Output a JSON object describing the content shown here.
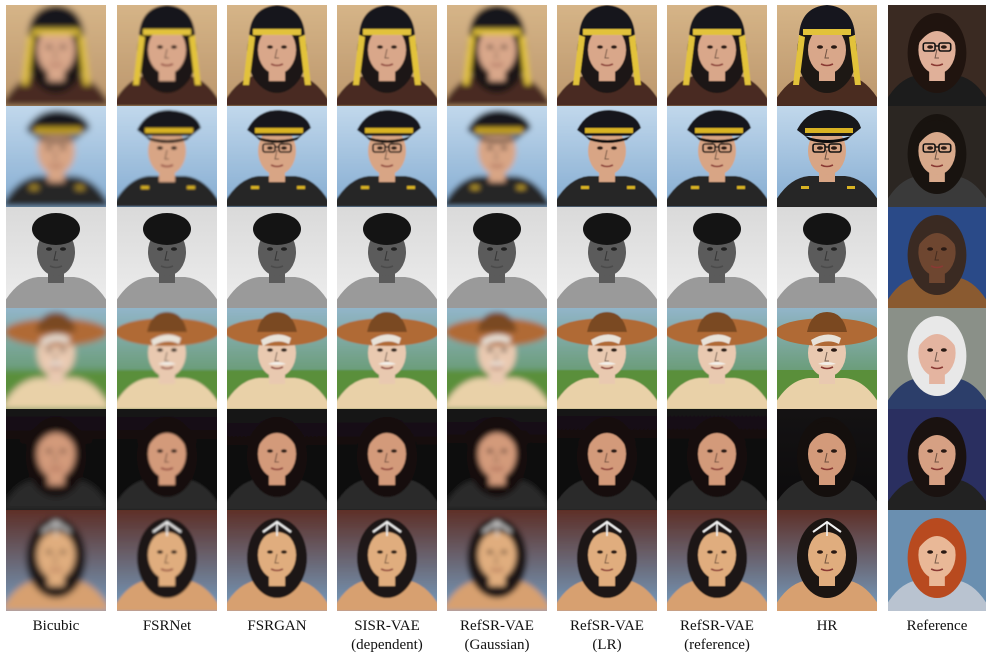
{
  "figure": {
    "columns": [
      {
        "label": "Bicubic",
        "sublabel": "",
        "style": "bicubic"
      },
      {
        "label": "FSRNet",
        "sublabel": "",
        "style": "fsrnet"
      },
      {
        "label": "FSRGAN",
        "sublabel": "",
        "style": "fsrgan"
      },
      {
        "label": "SISR-VAE",
        "sublabel": "(dependent)",
        "style": "sisr"
      },
      {
        "label": "RefSR-VAE",
        "sublabel": "(Gaussian)",
        "style": "gaussian"
      },
      {
        "label": "RefSR-VAE",
        "sublabel": "(LR)",
        "style": "lr"
      },
      {
        "label": "RefSR-VAE",
        "sublabel": "(reference)",
        "style": "reference"
      },
      {
        "label": "HR",
        "sublabel": "",
        "style": "hr"
      },
      {
        "label": "Reference",
        "sublabel": "",
        "style": "refimg"
      }
    ],
    "rows": [
      {
        "subject": "woman-ornate-headdress",
        "bg": "#b9946a",
        "bg2": "#d8b78a",
        "skin": "#d9a78a",
        "hair": "#1d1814",
        "top": "headdress",
        "topColor": "#16161e",
        "accent": "#e2c23a",
        "cloth": "#4a2c20",
        "ref": {
          "bg": "#3a2a22",
          "skin": "#e0b099",
          "hair": "#20140f",
          "glasses": true,
          "cloth": "#1c1c1c"
        }
      },
      {
        "subject": "man-captain-hat",
        "bg": "#7fa8cf",
        "bg2": "#c7dcee",
        "skin": "#d8a585",
        "hair": "#2a2320",
        "top": "cap",
        "topColor": "#17171a",
        "accent": "#d9b323",
        "cloth": "#262626",
        "glasses": true,
        "ref": {
          "bg": "#2b2622",
          "skin": "#d8a98b",
          "hair": "#18130f",
          "glasses": true,
          "cloth": "#3a3a3a"
        }
      },
      {
        "subject": "man-grayscale-boxer",
        "bg": "#efefef",
        "bg2": "#d8d8d8",
        "skin": "#5b5b5b",
        "hair": "#1a1a1a",
        "top": "afro",
        "topColor": "#141414",
        "accent": "#bdbdbd",
        "cloth": "#9a9a9a",
        "gray": true,
        "ref": {
          "bg": "#2a4a88",
          "skin": "#6e4630",
          "hair": "#3a2a22",
          "glasses": false,
          "cloth": "#8a5a30"
        }
      },
      {
        "subject": "man-sombrero",
        "bg": "#4d8a3c",
        "bg2": "#98b9d6",
        "skin": "#e9c9b0",
        "hair": "#e8e2d8",
        "top": "sombrero",
        "topColor": "#b06a35",
        "accent": "#7a4820",
        "cloth": "#e9d1a8",
        "mustache": true,
        "ref": {
          "bg": "#8a9088",
          "skin": "#e4b4a0",
          "hair": "#e8e8e8",
          "glasses": false,
          "cloth": "#2c3e6a"
        }
      },
      {
        "subject": "woman-dark-background",
        "bg": "#0b0a0b",
        "bg2": "#151314",
        "skin": "#d39a7a",
        "hair": "#140f0d",
        "top": "longhair",
        "topColor": "#140f0d",
        "accent": "#c5c5c5",
        "cloth": "#2a2a2a",
        "ref": {
          "bg": "#2a2f60",
          "skin": "#d6a083",
          "hair": "#1a1210",
          "glasses": false,
          "cloth": "#222222"
        }
      },
      {
        "subject": "woman-tiara",
        "bg": "#78a8cf",
        "bg2": "#5b2418",
        "skin": "#e0ad7e",
        "hair": "#1b1512",
        "top": "tiara",
        "topColor": "#1b1512",
        "accent": "#f2f2f2",
        "cloth": "#d7a070",
        "ref": {
          "bg": "#6a8fb0",
          "skin": "#e9b897",
          "hair": "#b84a1f",
          "glasses": false,
          "cloth": "#b9c3d0"
        }
      }
    ]
  }
}
